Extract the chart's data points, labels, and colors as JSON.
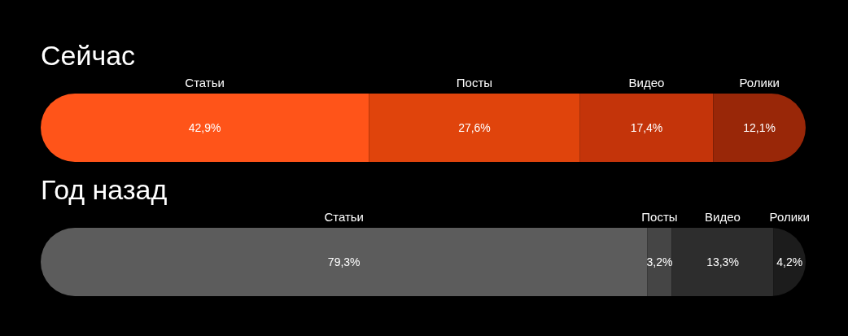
{
  "chart_data": [
    {
      "type": "bar",
      "orientation": "horizontal",
      "stacked": true,
      "title": "Сейчас",
      "categories": [
        null
      ],
      "xlim": [
        0,
        100
      ],
      "series": [
        {
          "name": "Статьи",
          "color": "#ff5419",
          "values": [
            42.9
          ],
          "value_labels": [
            "42,9%"
          ]
        },
        {
          "name": "Посты",
          "color": "#e0440c",
          "values": [
            27.6
          ],
          "value_labels": [
            "27,6%"
          ]
        },
        {
          "name": "Видео",
          "color": "#c4340a",
          "values": [
            17.4
          ],
          "value_labels": [
            "17,4%"
          ]
        },
        {
          "name": "Ролики",
          "color": "#992708",
          "values": [
            12.1
          ],
          "value_labels": [
            "12,1%"
          ]
        }
      ]
    },
    {
      "type": "bar",
      "orientation": "horizontal",
      "stacked": true,
      "title": "Год назад",
      "categories": [
        null
      ],
      "xlim": [
        0,
        100
      ],
      "series": [
        {
          "name": "Статьи",
          "color": "#5c5c5c",
          "values": [
            79.3
          ],
          "value_labels": [
            "79,3%"
          ]
        },
        {
          "name": "Посты",
          "color": "#454545",
          "values": [
            3.2
          ],
          "value_labels": [
            "3,2%"
          ]
        },
        {
          "name": "Видео",
          "color": "#2d2d2d",
          "values": [
            13.3
          ],
          "value_labels": [
            "13,3%"
          ]
        },
        {
          "name": "Ролики",
          "color": "#1c1c1c",
          "values": [
            4.2
          ],
          "value_labels": [
            "4,2%"
          ]
        }
      ]
    }
  ]
}
